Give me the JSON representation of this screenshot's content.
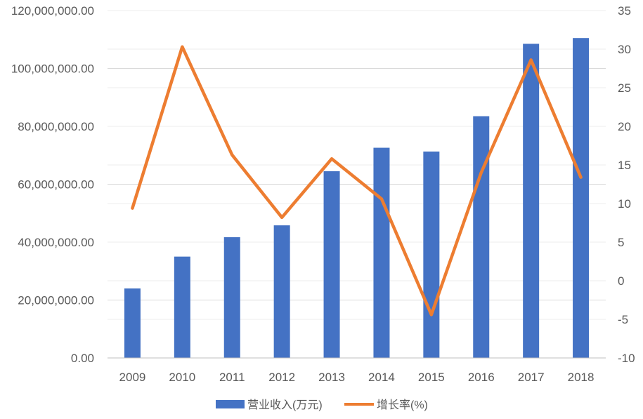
{
  "chart_data": {
    "type": "bar",
    "categories": [
      "2009",
      "2010",
      "2011",
      "2012",
      "2013",
      "2014",
      "2015",
      "2016",
      "2017",
      "2018"
    ],
    "series": [
      {
        "name": "营业收入(万元)",
        "type": "bar",
        "axis": "left",
        "color": "#4472C4",
        "values": [
          24000000,
          35000000,
          41700000,
          45800000,
          64500000,
          72600000,
          71300000,
          83500000,
          108500000,
          110500000
        ]
      },
      {
        "name": "增长率(%)",
        "type": "line",
        "axis": "right",
        "color": "#ED7D31",
        "values": [
          9.4,
          30.3,
          16.3,
          8.2,
          15.8,
          10.6,
          -4.4,
          14.0,
          28.6,
          13.4
        ]
      }
    ],
    "y_left": {
      "lim": [
        0,
        120000000
      ],
      "ticks": [
        "0.00",
        "20,000,000.00",
        "40,000,000.00",
        "60,000,000.00",
        "80,000,000.00",
        "100,000,000.00",
        "120,000,000.00"
      ]
    },
    "y_right": {
      "lim": [
        -10,
        35
      ],
      "ticks": [
        "-10",
        "-5",
        "0",
        "5",
        "10",
        "15",
        "20",
        "25",
        "30",
        "35"
      ]
    },
    "grid": true,
    "legend": "bottom"
  }
}
